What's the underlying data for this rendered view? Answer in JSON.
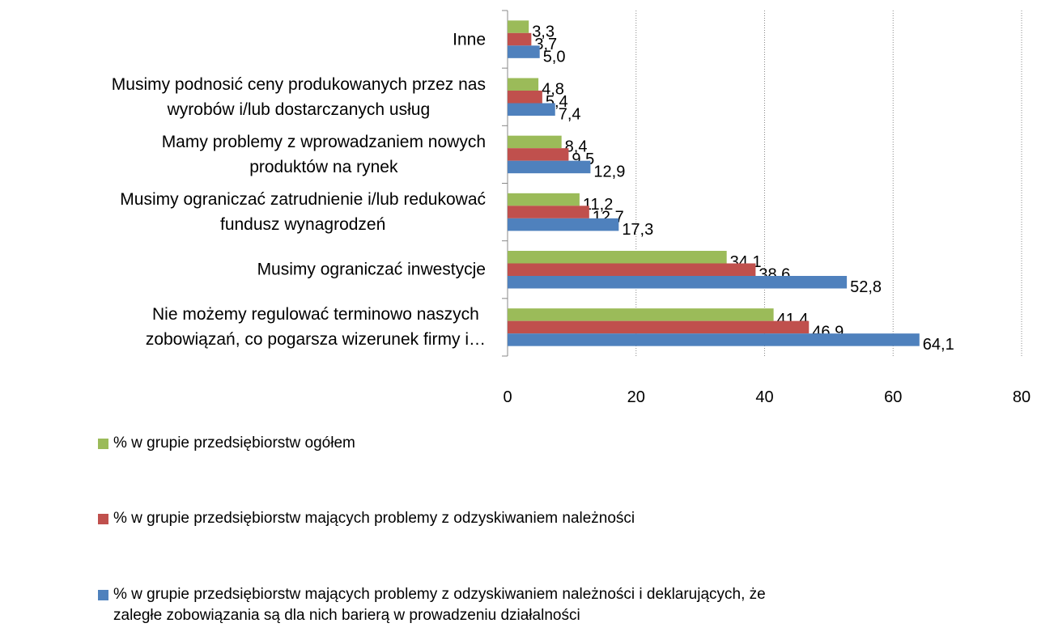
{
  "chart_data": {
    "type": "hbar",
    "categories": [
      "Inne",
      "Musimy podnosić ceny produkowanych przez nas\nwyrobów i/lub dostarczanych usług",
      "Mamy problemy z wprowadzaniem nowych\nproduktów na rynek",
      "Musimy ograniczać zatrudnienie i/lub redukować\nfundusz wynagrodzeń",
      "Musimy ograniczać inwestycje",
      "Nie możemy regulować terminowo naszych\nzobowiązań, co pogarsza wizerunek firmy i…"
    ],
    "series": [
      {
        "name": "% w grupie przedsiębiorstw ogółem",
        "color": "#9bbb59",
        "values": [
          3.3,
          4.8,
          8.4,
          11.2,
          34.1,
          41.4
        ],
        "value_labels": [
          "3,3",
          "4,8",
          "8,4",
          "11,2",
          "34,1",
          "41,4"
        ]
      },
      {
        "name": "% w grupie przedsiębiorstw mających problemy z odzyskiwaniem należności",
        "color": "#c0504d",
        "values": [
          3.7,
          5.4,
          9.5,
          12.7,
          38.6,
          46.9
        ],
        "value_labels": [
          "3,7",
          "5,4",
          "9,5",
          "12,7",
          "38,6",
          "46,9"
        ]
      },
      {
        "name": "% w grupie przedsiębiorstw mających problemy z odzyskiwaniem należności i deklarujących, że\nzaległe zobowiązania są dla nich barierą w prowadzeniu działalności",
        "color": "#4f81bd",
        "values": [
          5.0,
          7.4,
          12.9,
          17.3,
          52.8,
          64.1
        ],
        "value_labels": [
          "5,0",
          "7,4",
          "12,9",
          "17,3",
          "52,8",
          "64,1"
        ]
      }
    ],
    "xlim": [
      0,
      80
    ],
    "xticks": [
      0,
      20,
      40,
      60,
      80
    ],
    "grid": true,
    "legend": "bottom"
  }
}
